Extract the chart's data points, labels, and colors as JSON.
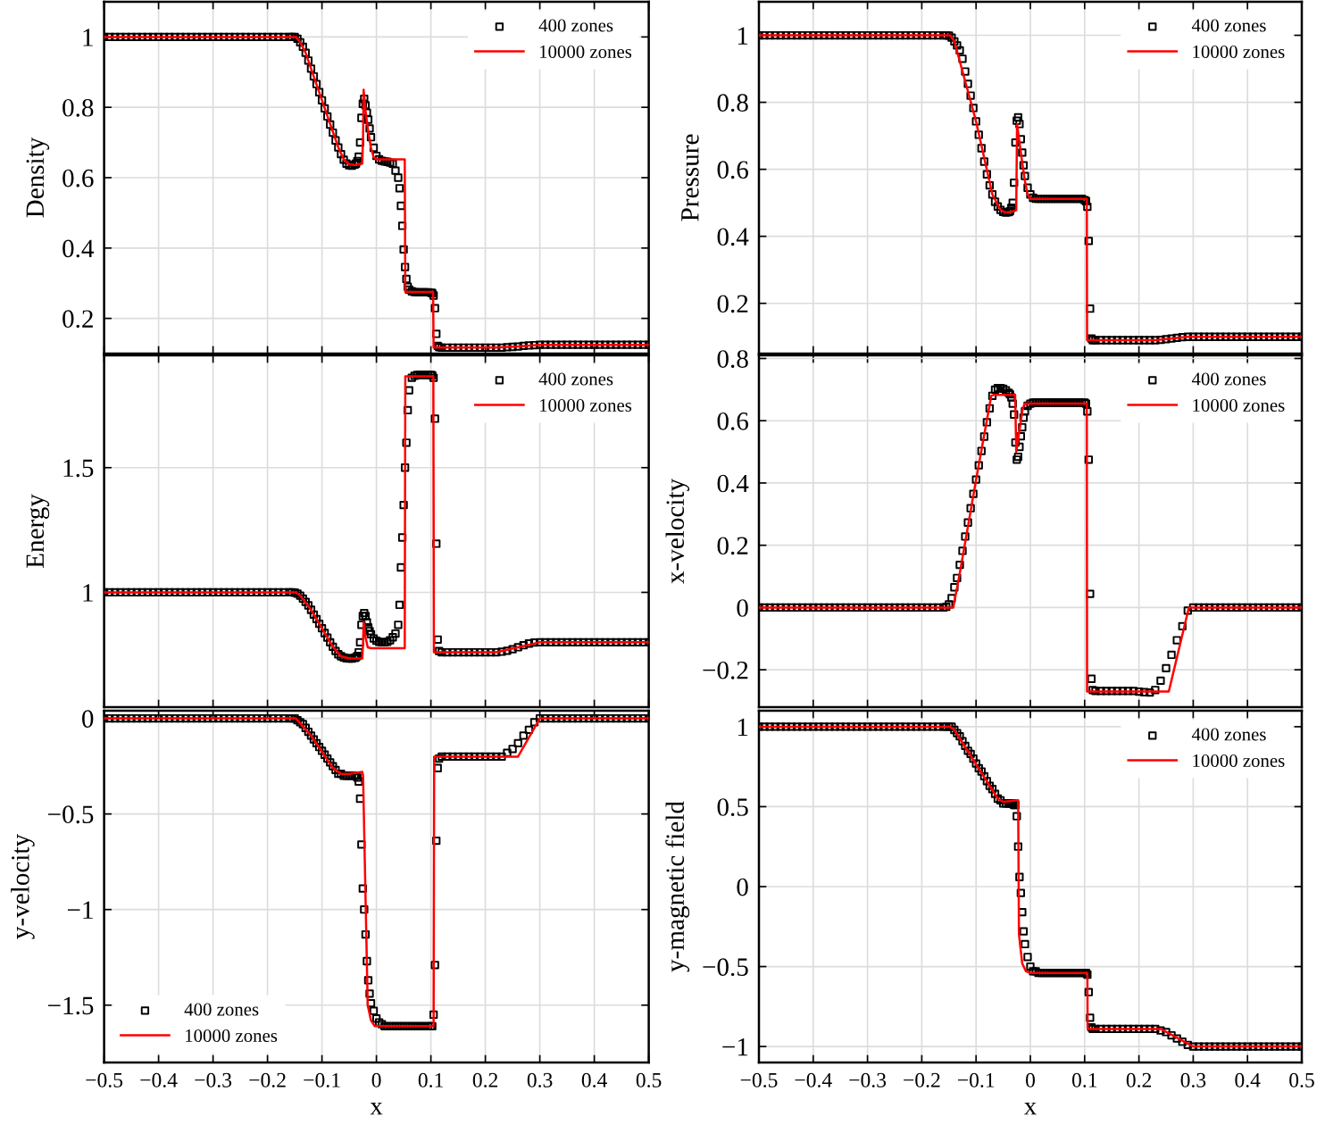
{
  "chart_data": [
    {
      "type": "line",
      "ylabel": "Density",
      "xlim": [
        -0.5,
        0.5
      ],
      "xticks": [
        -0.5,
        -0.4,
        -0.3,
        -0.2,
        -0.1,
        0,
        0.1,
        0.2,
        0.3,
        0.4,
        0.5
      ],
      "ylim": [
        0.1,
        1.1
      ],
      "yticks": [
        0.2,
        0.4,
        0.6,
        0.8,
        1
      ],
      "grid": true,
      "legend": "top right",
      "tick_labels": "y",
      "x": [
        -0.5,
        -0.49,
        -0.48,
        -0.47,
        -0.46,
        -0.45,
        -0.44,
        -0.43,
        -0.42,
        -0.41,
        -0.4,
        -0.39,
        -0.38,
        -0.37,
        -0.36,
        -0.35,
        -0.34,
        -0.33,
        -0.32,
        -0.31,
        -0.3,
        -0.29,
        -0.28,
        -0.27,
        -0.26,
        -0.25,
        -0.24,
        -0.23,
        -0.22,
        -0.21,
        -0.2,
        -0.19,
        -0.18,
        -0.17,
        -0.16,
        -0.155,
        -0.15,
        -0.145,
        -0.14,
        -0.135,
        -0.13,
        -0.125,
        -0.12,
        -0.115,
        -0.11,
        -0.105,
        -0.1,
        -0.095,
        -0.09,
        -0.085,
        -0.08,
        -0.075,
        -0.07,
        -0.065,
        -0.06,
        -0.055,
        -0.05,
        -0.045,
        -0.04,
        -0.0375,
        -0.035,
        -0.0325,
        -0.03,
        -0.0275,
        -0.025,
        -0.0225,
        -0.02,
        -0.0175,
        -0.015,
        -0.0125,
        -0.01,
        -0.005,
        0,
        0.005,
        0.01,
        0.015,
        0.02,
        0.025,
        0.03,
        0.035,
        0.04,
        0.0425,
        0.045,
        0.0475,
        0.05,
        0.0525,
        0.055,
        0.0575,
        0.06,
        0.065,
        0.07,
        0.075,
        0.08,
        0.085,
        0.09,
        0.095,
        0.1,
        0.1025,
        0.105,
        0.1075,
        0.11,
        0.1125,
        0.115,
        0.12,
        0.13,
        0.14,
        0.15,
        0.16,
        0.17,
        0.18,
        0.19,
        0.2,
        0.21,
        0.22,
        0.23,
        0.24,
        0.25,
        0.26,
        0.27,
        0.28,
        0.29,
        0.3,
        0.31,
        0.32,
        0.33,
        0.34,
        0.35,
        0.36,
        0.37,
        0.38,
        0.39,
        0.4,
        0.41,
        0.42,
        0.43,
        0.44,
        0.45,
        0.46,
        0.47,
        0.48,
        0.49,
        0.5
      ],
      "series": [
        {
          "name": "400 zones",
          "type": "scatter",
          "marker": "square",
          "color": "#000000",
          "values": [
            1,
            1,
            1,
            1,
            1,
            1,
            1,
            1,
            1,
            1,
            1,
            1,
            1,
            1,
            1,
            1,
            1,
            1,
            1,
            1,
            1,
            1,
            1,
            1,
            1,
            1,
            1,
            1,
            1,
            1,
            1,
            1,
            1,
            1,
            1,
            1,
            1,
            0.995,
            0.985,
            0.972,
            0.955,
            0.933,
            0.91,
            0.888,
            0.866,
            0.843,
            0.82,
            0.797,
            0.774,
            0.751,
            0.728,
            0.706,
            0.686,
            0.667,
            0.651,
            0.64,
            0.635,
            0.634,
            0.637,
            0.64,
            0.647,
            0.66,
            0.7,
            0.77,
            0.81,
            0.824,
            0.806,
            0.785,
            0.765,
            0.74,
            0.715,
            0.685,
            0.662,
            0.652,
            0.648,
            0.646,
            0.645,
            0.643,
            0.64,
            0.62,
            0.6,
            0.57,
            0.52,
            0.463,
            0.396,
            0.346,
            0.312,
            0.29,
            0.282,
            0.277,
            0.275,
            0.274,
            0.274,
            0.274,
            0.274,
            0.274,
            0.273,
            0.272,
            0.265,
            0.229,
            0.156,
            0.122,
            0.118,
            0.117,
            0.117,
            0.117,
            0.117,
            0.117,
            0.117,
            0.117,
            0.117,
            0.117,
            0.117,
            0.117,
            0.117,
            0.118,
            0.119,
            0.12,
            0.122,
            0.123,
            0.124,
            0.125,
            0.125,
            0.125,
            0.125,
            0.125,
            0.125,
            0.125,
            0.125,
            0.125,
            0.125,
            0.125,
            0.125,
            0.125,
            0.125,
            0.125,
            0.125,
            0.125,
            0.125,
            0.125,
            0.125,
            0.125
          ]
        },
        {
          "name": "10000 zones",
          "color": "#ff0000",
          "x": [
            -0.5,
            -0.148,
            -0.14,
            -0.13,
            -0.1,
            -0.07,
            -0.06,
            -0.05,
            -0.04,
            -0.026,
            -0.0245,
            -0.0235,
            -0.02,
            -0.015,
            -0.01,
            -0.005,
            0,
            0.052,
            0.053,
            0.104,
            0.105,
            0.22,
            0.26,
            0.3,
            0.5
          ],
          "values": [
            1,
            1,
            0.985,
            0.955,
            0.82,
            0.686,
            0.652,
            0.638,
            0.636,
            0.64,
            0.72,
            0.85,
            0.79,
            0.73,
            0.685,
            0.658,
            0.652,
            0.652,
            0.275,
            0.275,
            0.117,
            0.117,
            0.12,
            0.125,
            0.125
          ]
        }
      ]
    },
    {
      "type": "line",
      "ylabel": "Pressure",
      "xlim": [
        -0.5,
        0.5
      ],
      "xticks": [
        -0.5,
        -0.4,
        -0.3,
        -0.2,
        -0.1,
        0,
        0.1,
        0.2,
        0.3,
        0.4,
        0.5
      ],
      "ylim": [
        0.05,
        1.1
      ],
      "yticks": [
        0.2,
        0.4,
        0.6,
        0.8,
        1
      ],
      "grid": true,
      "legend": "top right",
      "tick_labels": "y",
      "x": [
        -0.5,
        -0.49,
        -0.48,
        -0.47,
        -0.46,
        -0.45,
        -0.44,
        -0.43,
        -0.42,
        -0.41,
        -0.4,
        -0.39,
        -0.38,
        -0.37,
        -0.36,
        -0.35,
        -0.34,
        -0.33,
        -0.32,
        -0.31,
        -0.3,
        -0.29,
        -0.28,
        -0.27,
        -0.26,
        -0.25,
        -0.24,
        -0.23,
        -0.22,
        -0.21,
        -0.2,
        -0.19,
        -0.18,
        -0.17,
        -0.16,
        -0.155,
        -0.15,
        -0.145,
        -0.14,
        -0.135,
        -0.13,
        -0.125,
        -0.12,
        -0.115,
        -0.11,
        -0.105,
        -0.1,
        -0.095,
        -0.09,
        -0.085,
        -0.08,
        -0.075,
        -0.07,
        -0.065,
        -0.06,
        -0.055,
        -0.05,
        -0.045,
        -0.04,
        -0.0375,
        -0.035,
        -0.0325,
        -0.03,
        -0.0275,
        -0.025,
        -0.0225,
        -0.02,
        -0.0175,
        -0.015,
        -0.0125,
        -0.01,
        -0.005,
        0,
        0.005,
        0.01,
        0.015,
        0.02,
        0.025,
        0.03,
        0.035,
        0.04,
        0.045,
        0.05,
        0.055,
        0.06,
        0.065,
        0.07,
        0.075,
        0.08,
        0.085,
        0.09,
        0.095,
        0.1,
        0.1025,
        0.105,
        0.1075,
        0.11,
        0.1125,
        0.115,
        0.12,
        0.13,
        0.14,
        0.15,
        0.16,
        0.17,
        0.18,
        0.19,
        0.2,
        0.21,
        0.22,
        0.23,
        0.24,
        0.25,
        0.26,
        0.27,
        0.28,
        0.29,
        0.3,
        0.31,
        0.32,
        0.33,
        0.34,
        0.35,
        0.36,
        0.37,
        0.38,
        0.39,
        0.4,
        0.41,
        0.42,
        0.43,
        0.44,
        0.45,
        0.46,
        0.47,
        0.48,
        0.49,
        0.5
      ],
      "series": [
        {
          "name": "400 zones",
          "type": "scatter",
          "marker": "square",
          "color": "#000000",
          "values": [
            1,
            1,
            1,
            1,
            1,
            1,
            1,
            1,
            1,
            1,
            1,
            1,
            1,
            1,
            1,
            1,
            1,
            1,
            1,
            1,
            1,
            1,
            1,
            1,
            1,
            1,
            1,
            1,
            1,
            1,
            1,
            1,
            1,
            1,
            1,
            1,
            0.999,
            0.993,
            0.982,
            0.97,
            0.955,
            0.93,
            0.892,
            0.855,
            0.82,
            0.783,
            0.743,
            0.703,
            0.663,
            0.623,
            0.585,
            0.552,
            0.525,
            0.503,
            0.489,
            0.479,
            0.473,
            0.471,
            0.472,
            0.475,
            0.485,
            0.5,
            0.56,
            0.68,
            0.745,
            0.755,
            0.735,
            0.69,
            0.65,
            0.612,
            0.58,
            0.545,
            0.525,
            0.515,
            0.512,
            0.512,
            0.512,
            0.512,
            0.512,
            0.512,
            0.512,
            0.512,
            0.512,
            0.512,
            0.512,
            0.512,
            0.512,
            0.512,
            0.512,
            0.512,
            0.512,
            0.512,
            0.508,
            0.505,
            0.488,
            0.386,
            0.184,
            0.095,
            0.09,
            0.09,
            0.09,
            0.09,
            0.09,
            0.09,
            0.09,
            0.09,
            0.09,
            0.09,
            0.09,
            0.09,
            0.09,
            0.091,
            0.093,
            0.095,
            0.097,
            0.099,
            0.1,
            0.1,
            0.1,
            0.1,
            0.1,
            0.1,
            0.1,
            0.1,
            0.1,
            0.1,
            0.1,
            0.1,
            0.1,
            0.1,
            0.1,
            0.1,
            0.1,
            0.1,
            0.1,
            0.1,
            0.1,
            0.1
          ]
        },
        {
          "name": "10000 zones",
          "color": "#ff0000",
          "x": [
            -0.5,
            -0.148,
            -0.14,
            -0.1,
            -0.07,
            -0.055,
            -0.045,
            -0.035,
            -0.026,
            -0.0245,
            -0.02,
            -0.015,
            -0.01,
            -0.005,
            0,
            0.104,
            0.1045,
            0.23,
            0.29,
            0.5
          ],
          "values": [
            1,
            1,
            0.982,
            0.743,
            0.525,
            0.479,
            0.471,
            0.473,
            0.478,
            0.735,
            0.68,
            0.62,
            0.565,
            0.525,
            0.512,
            0.512,
            0.09,
            0.09,
            0.1,
            0.1
          ]
        }
      ]
    },
    {
      "type": "line",
      "ylabel": "Energy",
      "xlim": [
        -0.5,
        0.5
      ],
      "xticks": [
        -0.5,
        -0.4,
        -0.3,
        -0.2,
        -0.1,
        0,
        0.1,
        0.2,
        0.3,
        0.4,
        0.5
      ],
      "ylim": [
        0.54,
        1.95
      ],
      "yticks": [
        1,
        1.5
      ],
      "grid": true,
      "legend": "top right",
      "tick_labels": "y",
      "x": [
        -0.5,
        -0.49,
        -0.48,
        -0.47,
        -0.46,
        -0.45,
        -0.44,
        -0.43,
        -0.42,
        -0.41,
        -0.4,
        -0.39,
        -0.38,
        -0.37,
        -0.36,
        -0.35,
        -0.34,
        -0.33,
        -0.32,
        -0.31,
        -0.3,
        -0.29,
        -0.28,
        -0.27,
        -0.26,
        -0.25,
        -0.24,
        -0.23,
        -0.22,
        -0.21,
        -0.2,
        -0.19,
        -0.18,
        -0.17,
        -0.16,
        -0.155,
        -0.15,
        -0.145,
        -0.14,
        -0.135,
        -0.13,
        -0.125,
        -0.12,
        -0.115,
        -0.11,
        -0.105,
        -0.1,
        -0.095,
        -0.09,
        -0.085,
        -0.08,
        -0.075,
        -0.07,
        -0.065,
        -0.06,
        -0.055,
        -0.05,
        -0.045,
        -0.04,
        -0.0375,
        -0.035,
        -0.0325,
        -0.03,
        -0.0275,
        -0.025,
        -0.0225,
        -0.02,
        -0.0175,
        -0.015,
        -0.0125,
        -0.01,
        -0.005,
        0,
        0.005,
        0.01,
        0.015,
        0.02,
        0.025,
        0.03,
        0.035,
        0.04,
        0.0425,
        0.045,
        0.0475,
        0.05,
        0.0525,
        0.055,
        0.0575,
        0.06,
        0.065,
        0.07,
        0.075,
        0.08,
        0.085,
        0.09,
        0.095,
        0.1,
        0.1025,
        0.105,
        0.1075,
        0.11,
        0.1125,
        0.115,
        0.12,
        0.13,
        0.14,
        0.15,
        0.16,
        0.17,
        0.18,
        0.19,
        0.2,
        0.21,
        0.22,
        0.23,
        0.24,
        0.25,
        0.26,
        0.27,
        0.28,
        0.29,
        0.3,
        0.31,
        0.32,
        0.33,
        0.34,
        0.35,
        0.36,
        0.37,
        0.38,
        0.39,
        0.4,
        0.41,
        0.42,
        0.43,
        0.44,
        0.45,
        0.46,
        0.47,
        0.48,
        0.49,
        0.5
      ],
      "series": [
        {
          "name": "400 zones",
          "type": "scatter",
          "marker": "square",
          "color": "#000000",
          "values": [
            1,
            1,
            1,
            1,
            1,
            1,
            1,
            1,
            1,
            1,
            1,
            1,
            1,
            1,
            1,
            1,
            1,
            1,
            1,
            1,
            1,
            1,
            1,
            1,
            1,
            1,
            1,
            1,
            1,
            1,
            1,
            1,
            1,
            1,
            1,
            1,
            0.999,
            0.995,
            0.987,
            0.975,
            0.962,
            0.948,
            0.93,
            0.911,
            0.893,
            0.874,
            0.856,
            0.837,
            0.819,
            0.8,
            0.782,
            0.765,
            0.752,
            0.744,
            0.739,
            0.736,
            0.735,
            0.735,
            0.737,
            0.74,
            0.745,
            0.76,
            0.8,
            0.87,
            0.905,
            0.917,
            0.905,
            0.88,
            0.86,
            0.845,
            0.832,
            0.815,
            0.806,
            0.802,
            0.8,
            0.8,
            0.802,
            0.808,
            0.82,
            0.835,
            0.87,
            0.95,
            1.1,
            1.22,
            1.35,
            1.5,
            1.6,
            1.73,
            1.81,
            1.86,
            1.868,
            1.872,
            1.872,
            1.872,
            1.872,
            1.872,
            1.872,
            1.87,
            1.86,
            1.696,
            1.195,
            0.811,
            0.765,
            0.76,
            0.76,
            0.76,
            0.76,
            0.76,
            0.76,
            0.76,
            0.76,
            0.76,
            0.76,
            0.76,
            0.762,
            0.766,
            0.772,
            0.78,
            0.788,
            0.795,
            0.799,
            0.8,
            0.8,
            0.8,
            0.8,
            0.8,
            0.8,
            0.8,
            0.8,
            0.8,
            0.8,
            0.8,
            0.8,
            0.8,
            0.8,
            0.8,
            0.8,
            0.8,
            0.8,
            0.8,
            0.8,
            0.8
          ]
        },
        {
          "name": "10000 zones",
          "color": "#ff0000",
          "x": [
            -0.5,
            -0.148,
            -0.14,
            -0.12,
            -0.08,
            -0.065,
            -0.05,
            -0.026,
            -0.0245,
            -0.0235,
            -0.02,
            -0.016,
            -0.01,
            0.052,
            0.053,
            0.1045,
            0.1055,
            0.22,
            0.26,
            0.3,
            0.5
          ],
          "values": [
            1,
            1,
            0.987,
            0.93,
            0.782,
            0.744,
            0.735,
            0.735,
            0.8,
            0.88,
            0.82,
            0.78,
            0.776,
            0.776,
            1.866,
            1.866,
            0.76,
            0.76,
            0.78,
            0.8,
            0.8
          ]
        }
      ]
    },
    {
      "type": "line",
      "ylabel": "x-velocity",
      "xlim": [
        -0.5,
        0.5
      ],
      "xticks": [
        -0.5,
        -0.4,
        -0.3,
        -0.2,
        -0.1,
        0,
        0.1,
        0.2,
        0.3,
        0.4,
        0.5
      ],
      "ylim": [
        -0.32,
        0.81
      ],
      "yticks": [
        {
          "value": -0.2,
          "label": "−0.2"
        },
        0,
        0.2,
        0.4,
        0.6,
        0.8
      ],
      "grid": true,
      "legend": "top right",
      "tick_labels": "y",
      "x": [
        -0.5,
        -0.49,
        -0.48,
        -0.47,
        -0.46,
        -0.45,
        -0.44,
        -0.43,
        -0.42,
        -0.41,
        -0.4,
        -0.39,
        -0.38,
        -0.37,
        -0.36,
        -0.35,
        -0.34,
        -0.33,
        -0.32,
        -0.31,
        -0.3,
        -0.29,
        -0.28,
        -0.27,
        -0.26,
        -0.25,
        -0.24,
        -0.23,
        -0.22,
        -0.21,
        -0.2,
        -0.19,
        -0.18,
        -0.17,
        -0.16,
        -0.155,
        -0.15,
        -0.145,
        -0.14,
        -0.135,
        -0.13,
        -0.125,
        -0.12,
        -0.115,
        -0.11,
        -0.105,
        -0.1,
        -0.095,
        -0.09,
        -0.085,
        -0.08,
        -0.075,
        -0.07,
        -0.065,
        -0.06,
        -0.055,
        -0.05,
        -0.045,
        -0.04,
        -0.0375,
        -0.035,
        -0.0325,
        -0.03,
        -0.0275,
        -0.025,
        -0.0225,
        -0.02,
        -0.0175,
        -0.015,
        -0.0125,
        -0.01,
        -0.005,
        0,
        0.005,
        0.01,
        0.015,
        0.02,
        0.025,
        0.03,
        0.035,
        0.04,
        0.045,
        0.05,
        0.055,
        0.06,
        0.065,
        0.07,
        0.075,
        0.08,
        0.085,
        0.09,
        0.095,
        0.1,
        0.1025,
        0.105,
        0.1075,
        0.11,
        0.1125,
        0.115,
        0.12,
        0.13,
        0.14,
        0.15,
        0.16,
        0.17,
        0.18,
        0.19,
        0.2,
        0.21,
        0.22,
        0.23,
        0.24,
        0.25,
        0.26,
        0.27,
        0.28,
        0.29,
        0.3,
        0.31,
        0.32,
        0.33,
        0.34,
        0.35,
        0.36,
        0.37,
        0.38,
        0.39,
        0.4,
        0.41,
        0.42,
        0.43,
        0.44,
        0.45,
        0.46,
        0.47,
        0.48,
        0.49,
        0.5
      ],
      "series": [
        {
          "name": "400 zones",
          "type": "scatter",
          "marker": "square",
          "color": "#000000",
          "values": [
            0,
            0,
            0,
            0,
            0,
            0,
            0,
            0,
            0,
            0,
            0,
            0,
            0,
            0,
            0,
            0,
            0,
            0,
            0,
            0,
            0,
            0,
            0,
            0,
            0,
            0,
            0,
            0,
            0,
            0,
            0,
            0,
            0,
            0,
            0,
            0.002,
            0.01,
            0.03,
            0.065,
            0.095,
            0.137,
            0.182,
            0.228,
            0.273,
            0.319,
            0.365,
            0.411,
            0.457,
            0.503,
            0.549,
            0.595,
            0.64,
            0.68,
            0.7,
            0.705,
            0.705,
            0.703,
            0.698,
            0.69,
            0.685,
            0.675,
            0.655,
            0.62,
            0.53,
            0.475,
            0.484,
            0.516,
            0.55,
            0.579,
            0.61,
            0.63,
            0.648,
            0.655,
            0.658,
            0.658,
            0.658,
            0.658,
            0.658,
            0.658,
            0.658,
            0.658,
            0.658,
            0.658,
            0.658,
            0.658,
            0.658,
            0.658,
            0.658,
            0.658,
            0.658,
            0.658,
            0.658,
            0.658,
            0.655,
            0.63,
            0.475,
            0.044,
            -0.229,
            -0.265,
            -0.268,
            -0.268,
            -0.268,
            -0.268,
            -0.268,
            -0.268,
            -0.268,
            -0.268,
            -0.27,
            -0.272,
            -0.273,
            -0.265,
            -0.235,
            -0.195,
            -0.152,
            -0.105,
            -0.06,
            -0.01,
            0,
            0,
            0,
            0,
            0,
            0,
            0,
            0,
            0,
            0,
            0,
            0,
            0,
            0,
            0,
            0,
            0,
            0,
            0,
            0,
            0
          ]
        },
        {
          "name": "10000 zones",
          "color": "#ff0000",
          "x": [
            -0.5,
            -0.142,
            -0.13,
            -0.1,
            -0.072,
            -0.068,
            -0.028,
            -0.026,
            -0.02,
            -0.014,
            -0.01,
            0.104,
            0.1045,
            0.255,
            0.292,
            0.5
          ],
          "values": [
            0,
            0,
            0.11,
            0.41,
            0.68,
            0.683,
            0.683,
            0.5,
            0.57,
            0.64,
            0.655,
            0.655,
            -0.27,
            -0.27,
            0,
            0
          ]
        }
      ]
    },
    {
      "type": "line",
      "ylabel": "y-velocity",
      "xlabel": "x",
      "xlim": [
        -0.5,
        0.5
      ],
      "xticks": [
        {
          "value": -0.5,
          "label": "−0.5"
        },
        {
          "value": -0.4,
          "label": "−0.4"
        },
        {
          "value": -0.3,
          "label": "−0.3"
        },
        {
          "value": -0.2,
          "label": "−0.2"
        },
        {
          "value": -0.1,
          "label": "−0.1"
        },
        0,
        0.1,
        0.2,
        0.3,
        0.4,
        0.5
      ],
      "ylim": [
        -1.8,
        0.04
      ],
      "yticks": [
        {
          "value": -1.5,
          "label": "−1.5"
        },
        {
          "value": -1,
          "label": "−1"
        },
        {
          "value": -0.5,
          "label": "−0.5"
        },
        0
      ],
      "grid": true,
      "legend": "bottom left",
      "x": [
        -0.5,
        -0.49,
        -0.48,
        -0.47,
        -0.46,
        -0.45,
        -0.44,
        -0.43,
        -0.42,
        -0.41,
        -0.4,
        -0.39,
        -0.38,
        -0.37,
        -0.36,
        -0.35,
        -0.34,
        -0.33,
        -0.32,
        -0.31,
        -0.3,
        -0.29,
        -0.28,
        -0.27,
        -0.26,
        -0.25,
        -0.24,
        -0.23,
        -0.22,
        -0.21,
        -0.2,
        -0.19,
        -0.18,
        -0.17,
        -0.16,
        -0.155,
        -0.15,
        -0.145,
        -0.14,
        -0.135,
        -0.13,
        -0.125,
        -0.12,
        -0.115,
        -0.11,
        -0.105,
        -0.1,
        -0.095,
        -0.09,
        -0.085,
        -0.08,
        -0.075,
        -0.07,
        -0.065,
        -0.06,
        -0.055,
        -0.05,
        -0.045,
        -0.04,
        -0.0375,
        -0.035,
        -0.0325,
        -0.03,
        -0.0275,
        -0.025,
        -0.0225,
        -0.02,
        -0.0175,
        -0.015,
        -0.0125,
        -0.01,
        -0.005,
        0,
        0.005,
        0.01,
        0.015,
        0.02,
        0.025,
        0.03,
        0.035,
        0.04,
        0.045,
        0.05,
        0.055,
        0.06,
        0.065,
        0.07,
        0.075,
        0.08,
        0.085,
        0.09,
        0.095,
        0.1,
        0.1025,
        0.105,
        0.1075,
        0.11,
        0.1125,
        0.115,
        0.12,
        0.13,
        0.14,
        0.15,
        0.16,
        0.17,
        0.18,
        0.19,
        0.2,
        0.21,
        0.22,
        0.23,
        0.24,
        0.25,
        0.26,
        0.27,
        0.28,
        0.29,
        0.3,
        0.31,
        0.32,
        0.33,
        0.34,
        0.35,
        0.36,
        0.37,
        0.38,
        0.39,
        0.4,
        0.41,
        0.42,
        0.43,
        0.44,
        0.45,
        0.46,
        0.47,
        0.48,
        0.49,
        0.5
      ],
      "series": [
        {
          "name": "400 zones",
          "type": "scatter",
          "marker": "square",
          "color": "#000000",
          "values": [
            0,
            0,
            0,
            0,
            0,
            0,
            0,
            0,
            0,
            0,
            0,
            0,
            0,
            0,
            0,
            0,
            0,
            0,
            0,
            0,
            0,
            0,
            0,
            0,
            0,
            0,
            0,
            0,
            0,
            0,
            0,
            0,
            0,
            0,
            0,
            0,
            0,
            -0.01,
            -0.02,
            -0.03,
            -0.05,
            -0.07,
            -0.09,
            -0.11,
            -0.13,
            -0.15,
            -0.17,
            -0.19,
            -0.21,
            -0.23,
            -0.25,
            -0.27,
            -0.29,
            -0.29,
            -0.3,
            -0.3,
            -0.3,
            -0.3,
            -0.3,
            -0.3,
            -0.31,
            -0.33,
            -0.42,
            -0.66,
            -0.89,
            -1,
            -1.13,
            -1.27,
            -1.37,
            -1.44,
            -1.49,
            -1.53,
            -1.57,
            -1.59,
            -1.6,
            -1.61,
            -1.61,
            -1.61,
            -1.61,
            -1.61,
            -1.61,
            -1.61,
            -1.61,
            -1.61,
            -1.61,
            -1.61,
            -1.61,
            -1.61,
            -1.61,
            -1.61,
            -1.61,
            -1.61,
            -1.61,
            -1.61,
            -1.55,
            -1.29,
            -0.64,
            -0.26,
            -0.21,
            -0.2,
            -0.2,
            -0.2,
            -0.2,
            -0.2,
            -0.2,
            -0.2,
            -0.2,
            -0.2,
            -0.2,
            -0.2,
            -0.2,
            -0.18,
            -0.16,
            -0.13,
            -0.09,
            -0.06,
            -0.02,
            0,
            0,
            0,
            0,
            0,
            0,
            0,
            0,
            0,
            0,
            0,
            0,
            0,
            0,
            0,
            0,
            0,
            0,
            0,
            0,
            0
          ]
        },
        {
          "name": "10000 zones",
          "color": "#ff0000",
          "x": [
            -0.5,
            -0.148,
            -0.12,
            -0.08,
            -0.065,
            -0.05,
            -0.026,
            -0.0245,
            -0.016,
            -0.01,
            -0.003,
            0.105,
            0.106,
            0.26,
            0.3,
            0.5
          ],
          "values": [
            0,
            0,
            -0.09,
            -0.26,
            -0.29,
            -0.29,
            -0.28,
            -0.3,
            -1.5,
            -1.58,
            -1.61,
            -1.61,
            -0.2,
            -0.2,
            0,
            0
          ]
        }
      ]
    },
    {
      "type": "line",
      "ylabel": "y-magnetic field",
      "xlabel": "x",
      "xlim": [
        -0.5,
        0.5
      ],
      "xticks": [
        {
          "value": -0.5,
          "label": "−0.5"
        },
        {
          "value": -0.4,
          "label": "−0.4"
        },
        {
          "value": -0.3,
          "label": "−0.3"
        },
        {
          "value": -0.2,
          "label": "−0.2"
        },
        {
          "value": -0.1,
          "label": "−0.1"
        },
        0,
        0.1,
        0.2,
        0.3,
        0.4,
        0.5
      ],
      "ylim": [
        -1.1,
        1.1
      ],
      "yticks": [
        {
          "value": -1,
          "label": "−1"
        },
        {
          "value": -0.5,
          "label": "−0.5"
        },
        0,
        0.5,
        1
      ],
      "grid": true,
      "legend": "top right",
      "x": [
        -0.5,
        -0.49,
        -0.48,
        -0.47,
        -0.46,
        -0.45,
        -0.44,
        -0.43,
        -0.42,
        -0.41,
        -0.4,
        -0.39,
        -0.38,
        -0.37,
        -0.36,
        -0.35,
        -0.34,
        -0.33,
        -0.32,
        -0.31,
        -0.3,
        -0.29,
        -0.28,
        -0.27,
        -0.26,
        -0.25,
        -0.24,
        -0.23,
        -0.22,
        -0.21,
        -0.2,
        -0.19,
        -0.18,
        -0.17,
        -0.16,
        -0.155,
        -0.15,
        -0.145,
        -0.14,
        -0.135,
        -0.13,
        -0.125,
        -0.12,
        -0.115,
        -0.11,
        -0.105,
        -0.1,
        -0.095,
        -0.09,
        -0.085,
        -0.08,
        -0.075,
        -0.07,
        -0.065,
        -0.06,
        -0.055,
        -0.05,
        -0.045,
        -0.04,
        -0.0375,
        -0.035,
        -0.0325,
        -0.03,
        -0.0275,
        -0.025,
        -0.0225,
        -0.02,
        -0.0175,
        -0.015,
        -0.0125,
        -0.01,
        -0.005,
        0,
        0.005,
        0.01,
        0.015,
        0.02,
        0.025,
        0.03,
        0.035,
        0.04,
        0.045,
        0.05,
        0.055,
        0.06,
        0.065,
        0.07,
        0.075,
        0.08,
        0.085,
        0.09,
        0.095,
        0.1,
        0.1025,
        0.105,
        0.1075,
        0.11,
        0.1125,
        0.115,
        0.12,
        0.13,
        0.14,
        0.15,
        0.16,
        0.17,
        0.18,
        0.19,
        0.2,
        0.21,
        0.22,
        0.23,
        0.24,
        0.25,
        0.26,
        0.27,
        0.28,
        0.29,
        0.3,
        0.31,
        0.32,
        0.33,
        0.34,
        0.35,
        0.36,
        0.37,
        0.38,
        0.39,
        0.4,
        0.41,
        0.42,
        0.43,
        0.44,
        0.45,
        0.46,
        0.47,
        0.48,
        0.49,
        0.5
      ],
      "series": [
        {
          "name": "400 zones",
          "type": "scatter",
          "marker": "square",
          "color": "#000000",
          "values": [
            1,
            1,
            1,
            1,
            1,
            1,
            1,
            1,
            1,
            1,
            1,
            1,
            1,
            1,
            1,
            1,
            1,
            1,
            1,
            1,
            1,
            1,
            1,
            1,
            1,
            1,
            1,
            1,
            1,
            1,
            1,
            1,
            1,
            1,
            1,
            1,
            1,
            1,
            0.98,
            0.96,
            0.94,
            0.91,
            0.88,
            0.85,
            0.83,
            0.8,
            0.77,
            0.74,
            0.72,
            0.69,
            0.66,
            0.63,
            0.61,
            0.58,
            0.55,
            0.54,
            0.52,
            0.52,
            0.52,
            0.52,
            0.52,
            0.52,
            0.51,
            0.51,
            0.44,
            0.25,
            0.06,
            -0.04,
            -0.16,
            -0.28,
            -0.36,
            -0.44,
            -0.5,
            -0.53,
            -0.53,
            -0.54,
            -0.54,
            -0.54,
            -0.54,
            -0.54,
            -0.54,
            -0.54,
            -0.54,
            -0.54,
            -0.54,
            -0.54,
            -0.54,
            -0.54,
            -0.54,
            -0.54,
            -0.54,
            -0.54,
            -0.54,
            -0.54,
            -0.55,
            -0.66,
            -0.82,
            -0.88,
            -0.89,
            -0.89,
            -0.89,
            -0.89,
            -0.89,
            -0.89,
            -0.89,
            -0.89,
            -0.89,
            -0.89,
            -0.89,
            -0.89,
            -0.89,
            -0.9,
            -0.91,
            -0.93,
            -0.95,
            -0.97,
            -0.99,
            -1,
            -1,
            -1,
            -1,
            -1,
            -1,
            -1,
            -1,
            -1,
            -1,
            -1,
            -1,
            -1,
            -1,
            -1,
            -1,
            -1,
            -1,
            -1,
            -1,
            -1
          ]
        },
        {
          "name": "10000 zones",
          "color": "#ff0000",
          "x": [
            -0.5,
            -0.148,
            -0.14,
            -0.06,
            -0.05,
            -0.0225,
            -0.021,
            -0.015,
            -0.008,
            0,
            0.105,
            0.1055,
            0.24,
            0.3,
            0.5
          ],
          "values": [
            1,
            1,
            0.98,
            0.55,
            0.53,
            0.54,
            -0.3,
            -0.48,
            -0.53,
            -0.54,
            -0.54,
            -0.89,
            -0.89,
            -1,
            -1
          ]
        }
      ]
    }
  ]
}
